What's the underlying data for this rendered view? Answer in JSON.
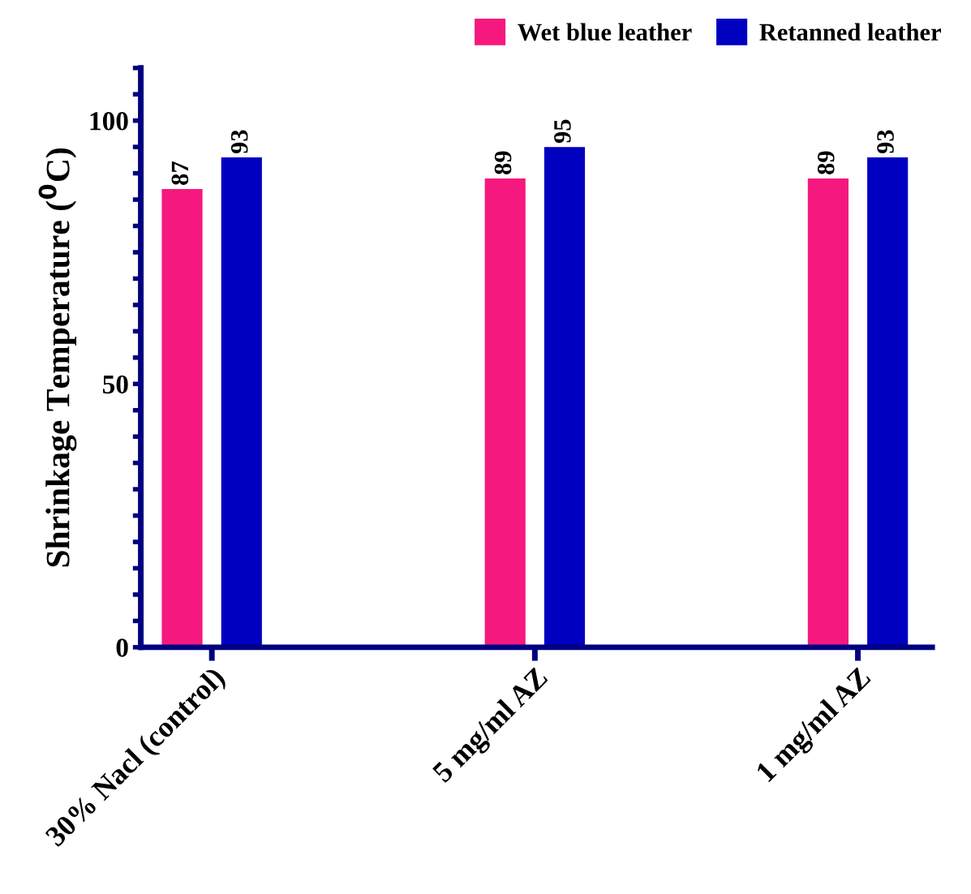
{
  "chart_data": {
    "type": "bar",
    "ylabel": "Shrinkage Temperature ($^{0}$C)",
    "categories": [
      "30% Nacl (control)",
      "5 mg/ml AZ",
      "1 mg/ml AZ"
    ],
    "series": [
      {
        "name": "Wet blue leather",
        "color": "#f5187f",
        "values": [
          87,
          89,
          89
        ]
      },
      {
        "name": "Retanned leather",
        "color": "#0000c0",
        "values": [
          93,
          95,
          93
        ]
      }
    ],
    "ylim": [
      0,
      110
    ],
    "yticks": [
      0,
      {
        "value": 5,
        "label": null
      },
      {
        "value": 10,
        "label": null
      },
      {
        "value": 15,
        "label": null
      },
      {
        "value": 20,
        "label": null
      },
      {
        "value": 25,
        "label": null
      },
      {
        "value": 30,
        "label": null
      },
      {
        "value": 35,
        "label": null
      },
      {
        "value": 40,
        "label": null
      },
      {
        "value": 45,
        "label": null
      },
      50,
      {
        "value": 55,
        "label": null
      },
      {
        "value": 60,
        "label": null
      },
      {
        "value": 65,
        "label": null
      },
      {
        "value": 70,
        "label": null
      },
      {
        "value": 75,
        "label": null
      },
      {
        "value": 80,
        "label": null
      },
      {
        "value": 85,
        "label": null
      },
      {
        "value": 90,
        "label": null
      },
      {
        "value": 95,
        "label": null
      },
      100,
      {
        "value": 105,
        "label": null
      },
      {
        "value": 110,
        "label": null
      }
    ],
    "data_labels": true,
    "legend": "top right",
    "grid": false
  }
}
